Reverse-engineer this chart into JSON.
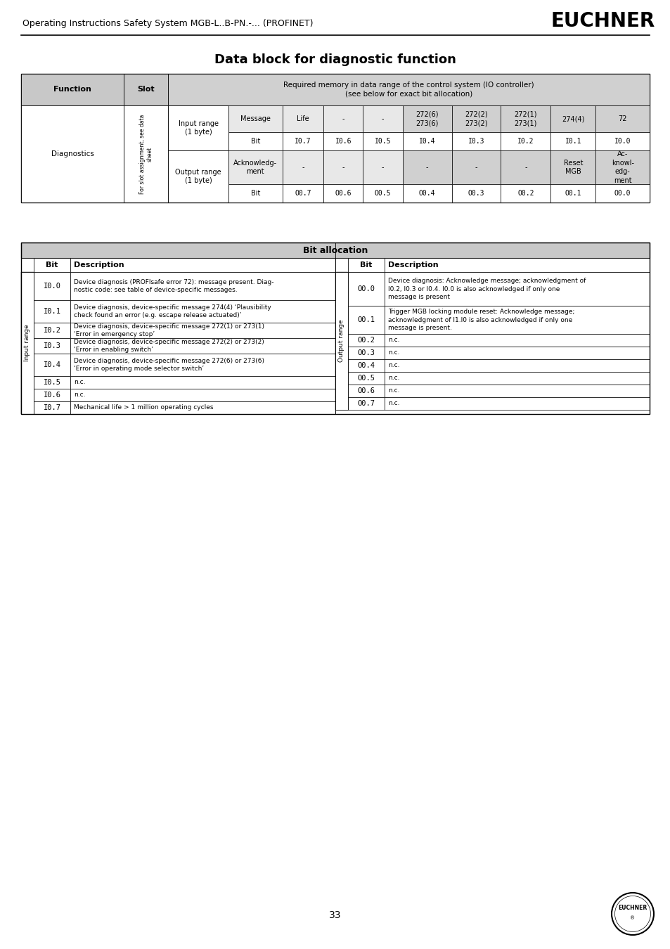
{
  "title": "Data block for diagnostic function",
  "header_text": "Operating Instructions Safety System MGB-L..B-PN.-... (PROFINET)",
  "euchner_logo": "EUCHNER",
  "page_number": "33",
  "bg_color": "#ffffff",
  "table1": {
    "header_bg": "#c8c8c8",
    "subheader_bg": "#d0d0d0",
    "light_bg": "#e8e8e8",
    "main_header": "Required memory in data range of the control system (IO controller)\n(see below for exact bit allocation)",
    "function": "Diagnostics",
    "slot_text": "For slot assignment, see data sheet",
    "input_range": "Input range\n(1 byte)",
    "output_range": "Output range\n(1 byte)",
    "message_row": [
      "Message",
      "Life",
      "-",
      "-",
      "272(6)\n273(6)",
      "272(2)\n273(2)",
      "272(1)\n273(1)",
      "274(4)",
      "72"
    ],
    "bit_row_input": [
      "Bit",
      "I0.7",
      "I0.6",
      "I0.5",
      "I0.4",
      "I0.3",
      "I0.2",
      "I0.1",
      "I0.0"
    ],
    "ack_row": [
      "Acknowledg-\nment",
      "-",
      "-",
      "-",
      "-",
      "-",
      "-",
      "Reset\nMGB",
      "Ac-\nknowl-\nedg-\nment"
    ],
    "bit_row_output": [
      "Bit",
      "O0.7",
      "O0.6",
      "O0.5",
      "O0.4",
      "O0.3",
      "O0.2",
      "O0.1",
      "O0.0"
    ]
  },
  "table2": {
    "header_bg": "#c8c8c8",
    "header": "Bit allocation",
    "input_label": "Input range",
    "output_label": "Output range",
    "input_rows": [
      [
        "I0.0",
        "Device diagnosis (PROFIsafe error 72): message present. Diag-\nnostic code: see table of device-specific messages."
      ],
      [
        "I0.1",
        "Device diagnosis, device-specific message 274(4) ‘Plausibility\ncheck found an error (e.g. escape release actuated)’"
      ],
      [
        "I0.2",
        "Device diagnosis, device-specific message 272(1) or 273(1)\n‘Error in emergency stop’"
      ],
      [
        "I0.3",
        "Device diagnosis, device-specific message 272(2) or 273(2)\n‘Error in enabling switch’"
      ],
      [
        "I0.4",
        "Device diagnosis, device-specific message 272(6) or 273(6)\n‘Error in operating mode selector switch’"
      ],
      [
        "I0.5",
        "n.c."
      ],
      [
        "I0.6",
        "n.c."
      ],
      [
        "I0.7",
        "Mechanical life > 1 million operating cycles"
      ]
    ],
    "output_rows": [
      [
        "O0.0",
        "Device diagnosis: Acknowledge message; acknowledgment of\nI0.2, I0.3 or I0.4. I0.0 is also acknowledged if only one\nmessage is present"
      ],
      [
        "O0.1",
        "Trigger MGB locking module reset: Acknowledge message;\nacknowledgment of I1.I0 is also acknowledged if only one\nmessage is present."
      ],
      [
        "O0.2",
        "n.c."
      ],
      [
        "O0.3",
        "n.c."
      ],
      [
        "O0.4",
        "n.c."
      ],
      [
        "O0.5",
        "n.c."
      ],
      [
        "O0.6",
        "n.c."
      ],
      [
        "O0.7",
        "n.c."
      ]
    ]
  }
}
